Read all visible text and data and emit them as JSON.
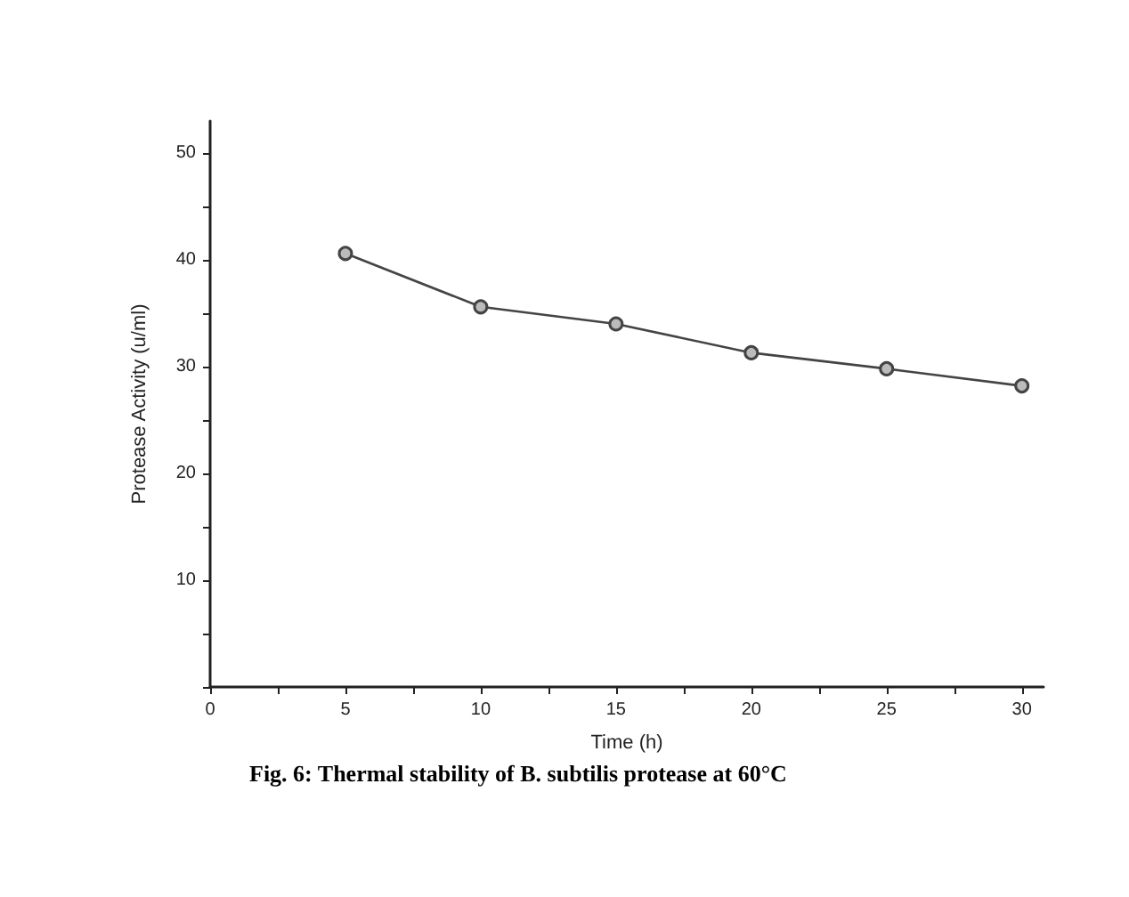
{
  "chart_data": {
    "type": "line",
    "xlabel": "Time (h)",
    "ylabel": "Protease Activity (u/ml)",
    "annotations": [
      "Fig. 6: Thermal stability of B. subtilis protease at 60°C"
    ],
    "x": [
      5,
      10,
      15,
      20,
      25,
      30
    ],
    "series": [
      {
        "color": "#444444",
        "values": [
          40.6,
          35.6,
          34.0,
          31.3,
          29.8,
          28.2
        ]
      }
    ],
    "xlim": [
      0,
      30.8
    ],
    "ylim": [
      0,
      53
    ],
    "xticks": [
      0,
      {
        "value": 2.5,
        "label": null
      },
      5,
      {
        "value": 7.5,
        "label": null
      },
      10,
      {
        "value": 12.5,
        "label": null
      },
      15,
      {
        "value": 17.5,
        "label": null
      },
      20,
      {
        "value": 22.5,
        "label": null
      },
      25,
      {
        "value": 27.5,
        "label": null
      },
      30
    ],
    "yticks": [
      {
        "value": 0,
        "label": null
      },
      {
        "value": 5,
        "label": null
      },
      10,
      {
        "value": 15,
        "label": null
      },
      20,
      {
        "value": 25,
        "label": null
      },
      30,
      {
        "value": 35,
        "label": null
      },
      40,
      {
        "value": 45,
        "label": null
      },
      50
    ],
    "grid": false,
    "marker": "circle",
    "line_style": "solid"
  }
}
